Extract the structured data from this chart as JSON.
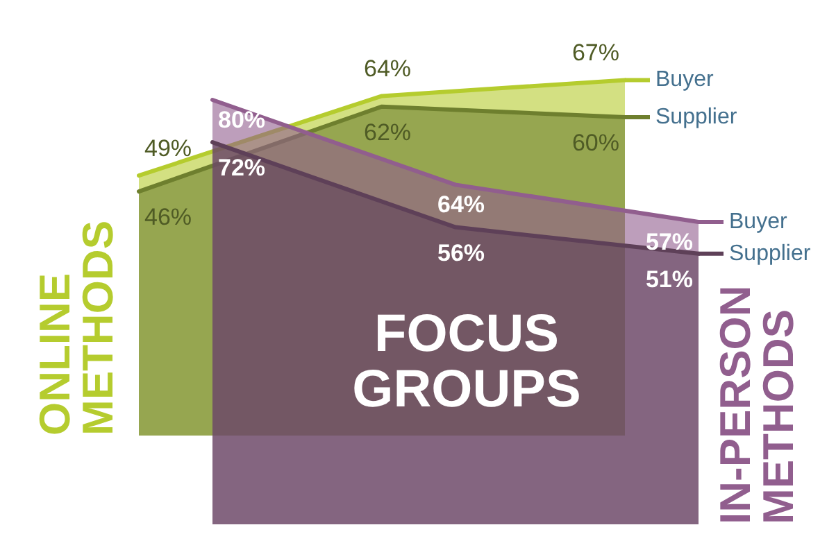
{
  "chart_data": [
    {
      "type": "area",
      "title": "ONLINE METHODS",
      "categories": [
        null,
        null,
        null
      ],
      "legend": "top right",
      "series": [
        {
          "name": "Buyer",
          "color": "#b5cc2e",
          "values": [
            49,
            64,
            67
          ],
          "value_labels": [
            "49%",
            "64%",
            "67%"
          ]
        },
        {
          "name": "Supplier",
          "color": "#6e7f2e",
          "values": [
            46,
            62,
            60
          ],
          "value_labels": [
            "46%",
            "62%",
            "60%"
          ]
        }
      ]
    },
    {
      "type": "area",
      "title": "IN-PERSON METHODS",
      "categories": [
        null,
        null,
        null
      ],
      "legend": "right",
      "series": [
        {
          "name": "Buyer",
          "color": "#915e8e",
          "values": [
            80,
            64,
            57
          ],
          "value_labels": [
            "80%",
            "64%",
            "57%"
          ]
        },
        {
          "name": "Supplier",
          "color": "#5e4058",
          "values": [
            72,
            56,
            51
          ],
          "value_labels": [
            "72%",
            "56%",
            "51%"
          ]
        }
      ],
      "annotations": [
        "FOCUS GROUPS"
      ]
    }
  ]
}
